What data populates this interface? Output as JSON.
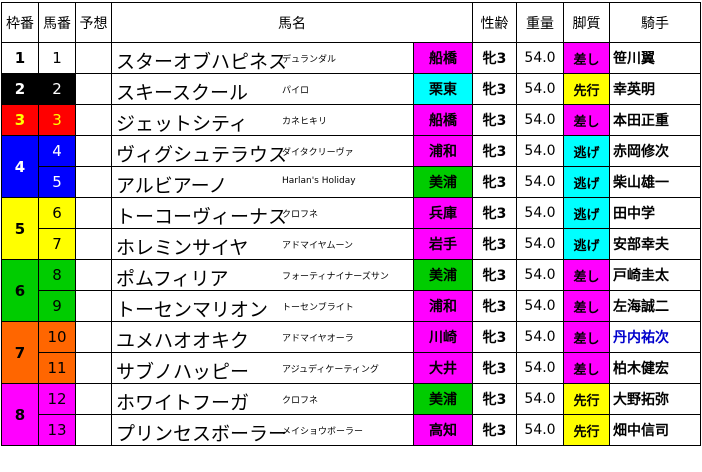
{
  "headers": {
    "waku": "枠番",
    "umaban": "馬番",
    "yoso": "予想",
    "bamei": "馬名",
    "seirei": "性齢",
    "juryo": "重量",
    "kyakushitsu": "脚質",
    "kishu": "騎手"
  },
  "waku_groups": [
    {
      "waku": "1",
      "bg": "#ffffff",
      "fg": "#000000",
      "horses": [
        0
      ]
    },
    {
      "waku": "2",
      "bg": "#000000",
      "fg": "#ffffff",
      "horses": [
        1
      ]
    },
    {
      "waku": "3",
      "bg": "#ff0000",
      "fg": "#ffff00",
      "horses": [
        2
      ]
    },
    {
      "waku": "4",
      "bg": "#0000ff",
      "fg": "#ffffff",
      "horses": [
        3,
        4
      ]
    },
    {
      "waku": "5",
      "bg": "#ffff00",
      "fg": "#000000",
      "horses": [
        5,
        6
      ]
    },
    {
      "waku": "6",
      "bg": "#00cc00",
      "fg": "#000000",
      "horses": [
        7,
        8
      ]
    },
    {
      "waku": "7",
      "bg": "#ff6600",
      "fg": "#000000",
      "horses": [
        9,
        10
      ]
    },
    {
      "waku": "8",
      "bg": "#ff00ff",
      "fg": "#000000",
      "horses": [
        11,
        12
      ]
    }
  ],
  "horses": [
    {
      "umaban": "1",
      "name": "スターオブハピネス",
      "sire": "デュランダル",
      "stable": "船橋",
      "stable_bg": "#ff00ff",
      "sexage": "牝3",
      "weight": "54.0",
      "style": "差し",
      "style_bg": "#ff00ff",
      "jockey": "笹川翼",
      "jockey_color": "#000000"
    },
    {
      "umaban": "2",
      "name": "スキースクール",
      "sire": "パイロ",
      "stable": "栗東",
      "stable_bg": "#00ffff",
      "sexage": "牝3",
      "weight": "54.0",
      "style": "先行",
      "style_bg": "#ffff00",
      "jockey": "幸英明",
      "jockey_color": "#000000"
    },
    {
      "umaban": "3",
      "name": "ジェットシティ",
      "sire": "カネヒキリ",
      "stable": "船橋",
      "stable_bg": "#ff00ff",
      "sexage": "牝3",
      "weight": "54.0",
      "style": "差し",
      "style_bg": "#ff00ff",
      "jockey": "本田正重",
      "jockey_color": "#000000"
    },
    {
      "umaban": "4",
      "name": "ヴィグシュテラウス",
      "sire": "ダイタクリーヴァ",
      "stable": "浦和",
      "stable_bg": "#ff00ff",
      "sexage": "牝3",
      "weight": "54.0",
      "style": "逃げ",
      "style_bg": "#00ffff",
      "jockey": "赤岡修次",
      "jockey_color": "#000000"
    },
    {
      "umaban": "5",
      "name": "アルビアーノ",
      "sire": "Harlan's Holiday",
      "stable": "美浦",
      "stable_bg": "#00cc00",
      "sexage": "牝3",
      "weight": "54.0",
      "style": "逃げ",
      "style_bg": "#00ffff",
      "jockey": "柴山雄一",
      "jockey_color": "#000000"
    },
    {
      "umaban": "6",
      "name": "トーコーヴィーナス",
      "sire": "クロフネ",
      "stable": "兵庫",
      "stable_bg": "#ff00ff",
      "sexage": "牝3",
      "weight": "54.0",
      "style": "逃げ",
      "style_bg": "#00ffff",
      "jockey": "田中学",
      "jockey_color": "#000000"
    },
    {
      "umaban": "7",
      "name": "ホレミンサイヤ",
      "sire": "アドマイヤムーン",
      "stable": "岩手",
      "stable_bg": "#ff00ff",
      "sexage": "牝3",
      "weight": "54.0",
      "style": "逃げ",
      "style_bg": "#00ffff",
      "jockey": "安部幸夫",
      "jockey_color": "#000000"
    },
    {
      "umaban": "8",
      "name": "ポムフィリア",
      "sire": "フォーティナイナーズサン",
      "stable": "美浦",
      "stable_bg": "#00cc00",
      "sexage": "牝3",
      "weight": "54.0",
      "style": "差し",
      "style_bg": "#ff00ff",
      "jockey": "戸崎圭太",
      "jockey_color": "#000000"
    },
    {
      "umaban": "9",
      "name": "トーセンマリオン",
      "sire": "トーセンブライト",
      "stable": "浦和",
      "stable_bg": "#ff00ff",
      "sexage": "牝3",
      "weight": "54.0",
      "style": "差し",
      "style_bg": "#ff00ff",
      "jockey": "左海誠二",
      "jockey_color": "#000000"
    },
    {
      "umaban": "10",
      "name": "ユメハオオキク",
      "sire": "アドマイヤオーラ",
      "stable": "川崎",
      "stable_bg": "#ff00ff",
      "sexage": "牝3",
      "weight": "54.0",
      "style": "差し",
      "style_bg": "#ff00ff",
      "jockey": "丹内祐次",
      "jockey_color": "#0000cc"
    },
    {
      "umaban": "11",
      "name": "サブノハッピー",
      "sire": "アジュディケーティング",
      "stable": "大井",
      "stable_bg": "#ff00ff",
      "sexage": "牝3",
      "weight": "54.0",
      "style": "差し",
      "style_bg": "#ff00ff",
      "jockey": "柏木健宏",
      "jockey_color": "#000000"
    },
    {
      "umaban": "12",
      "name": "ホワイトフーガ",
      "sire": "クロフネ",
      "stable": "美浦",
      "stable_bg": "#00cc00",
      "sexage": "牝3",
      "weight": "54.0",
      "style": "先行",
      "style_bg": "#ffff00",
      "jockey": "大野拓弥",
      "jockey_color": "#000000"
    },
    {
      "umaban": "13",
      "name": "プリンセスボーラー",
      "sire": "メイショウボーラー",
      "stable": "高知",
      "stable_bg": "#ff00ff",
      "sexage": "牝3",
      "weight": "54.0",
      "style": "先行",
      "style_bg": "#ffff00",
      "jockey": "畑中信司",
      "jockey_color": "#000000"
    }
  ]
}
